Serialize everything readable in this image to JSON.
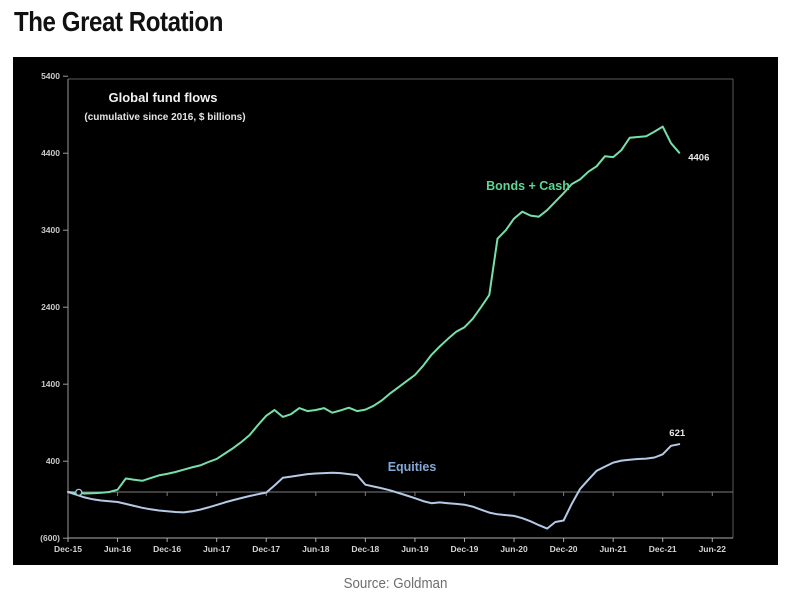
{
  "page": {
    "title": "The Great Rotation",
    "source": "Source: Goldman"
  },
  "chart_data": {
    "type": "line",
    "title": "Global fund flows",
    "subtitle": "(cumulative since 2016, $ billions)",
    "background_color": "#000000",
    "grid": "zero-line-only",
    "ylim": [
      -600,
      5400
    ],
    "y_ticks": [
      {
        "label": "5400",
        "value": 5400
      },
      {
        "label": "4400",
        "value": 4400
      },
      {
        "label": "3400",
        "value": 3400
      },
      {
        "label": "2400",
        "value": 2400
      },
      {
        "label": "1400",
        "value": 1400
      },
      {
        "label": "400",
        "value": 400
      },
      {
        "label": "(600)",
        "value": -600
      }
    ],
    "x_tick_labels": [
      "Dec-15",
      "Jun-16",
      "Dec-16",
      "Jun-17",
      "Dec-17",
      "Jun-18",
      "Dec-18",
      "Jun-19",
      "Dec-19",
      "Jun-20",
      "Dec-20",
      "Jun-21",
      "Dec-21",
      "Jun-22"
    ],
    "x_tick_interval_months": 6,
    "x_start": "Dec-15",
    "x_points_monthly": true,
    "series": [
      {
        "name": "Bonds + Cash",
        "color": "#77dfa9",
        "label_color": "#5fd695",
        "end_label": "4406",
        "values": [
          0,
          -10,
          -20,
          -15,
          -10,
          0,
          30,
          175,
          160,
          145,
          180,
          215,
          235,
          260,
          290,
          320,
          345,
          390,
          430,
          500,
          570,
          650,
          740,
          870,
          990,
          1065,
          975,
          1010,
          1090,
          1050,
          1065,
          1090,
          1030,
          1060,
          1095,
          1050,
          1070,
          1120,
          1190,
          1280,
          1360,
          1440,
          1520,
          1640,
          1780,
          1890,
          1990,
          2080,
          2140,
          2250,
          2400,
          2560,
          3290,
          3400,
          3550,
          3640,
          3590,
          3575,
          3660,
          3770,
          3880,
          4000,
          4060,
          4160,
          4230,
          4360,
          4350,
          4440,
          4600,
          4610,
          4620,
          4680,
          4745,
          4530,
          4406
        ]
      },
      {
        "name": "Equities",
        "color": "#b5cae6",
        "label_color": "#84a9d8",
        "end_label": "621",
        "values": [
          0,
          -35,
          -70,
          -95,
          -110,
          -120,
          -130,
          -155,
          -180,
          -205,
          -225,
          -240,
          -250,
          -260,
          -265,
          -250,
          -228,
          -200,
          -168,
          -135,
          -105,
          -78,
          -52,
          -28,
          -8,
          85,
          185,
          200,
          215,
          232,
          240,
          246,
          250,
          246,
          232,
          220,
          95,
          72,
          48,
          22,
          -12,
          -45,
          -80,
          -118,
          -145,
          -135,
          -145,
          -155,
          -165,
          -190,
          -230,
          -268,
          -290,
          -300,
          -310,
          -340,
          -380,
          -430,
          -475,
          -390,
          -370,
          -150,
          40,
          160,
          275,
          330,
          382,
          408,
          420,
          428,
          434,
          448,
          490,
          600,
          621
        ]
      }
    ]
  }
}
